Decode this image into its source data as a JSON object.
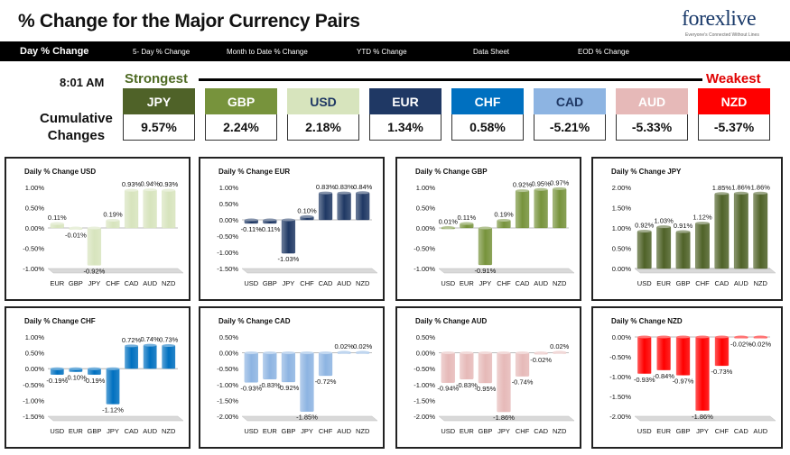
{
  "header": {
    "title": "% Change for the Major Currency Pairs",
    "logo": "forexlive",
    "logo_sub": "Everyone's Connected Without Lines"
  },
  "nav": {
    "items": [
      "Day % Change",
      "5- Day % Change",
      "Month to Date % Change",
      "YTD % Change",
      "Data Sheet",
      "EOD % Change"
    ]
  },
  "summary": {
    "time": "8:01 AM",
    "strongest_label": "Strongest",
    "weakest_label": "Weakest",
    "cumulative_label_1": "Cumulative",
    "cumulative_label_2": "Changes",
    "currencies": [
      {
        "name": "JPY",
        "value": "9.57%",
        "color": "#4f6228",
        "text": "#ffffff"
      },
      {
        "name": "GBP",
        "value": "2.24%",
        "color": "#77933c",
        "text": "#ffffff"
      },
      {
        "name": "USD",
        "value": "2.18%",
        "color": "#d7e4bd",
        "text": "#1f3864"
      },
      {
        "name": "EUR",
        "value": "1.34%",
        "color": "#1f3864",
        "text": "#ffffff"
      },
      {
        "name": "CHF",
        "value": "0.58%",
        "color": "#0070c0",
        "text": "#ffffff"
      },
      {
        "name": "CAD",
        "value": "-5.21%",
        "color": "#8db4e2",
        "text": "#1f3864"
      },
      {
        "name": "AUD",
        "value": "-5.33%",
        "color": "#e6b9b8",
        "text": "#ffffff"
      },
      {
        "name": "NZD",
        "value": "-5.37%",
        "color": "#ff0000",
        "text": "#ffffff"
      }
    ]
  },
  "chart_data": [
    {
      "type": "bar",
      "title": "Daily % Change USD",
      "categories": [
        "EUR",
        "GBP",
        "JPY",
        "CHF",
        "CAD",
        "AUD",
        "NZD"
      ],
      "values": [
        0.11,
        -0.01,
        -0.92,
        0.19,
        0.93,
        0.94,
        0.93
      ],
      "labels": [
        "0.11%",
        "-0.01%",
        "-0.92%",
        "0.19%",
        "0.93%",
        "0.94%",
        "0.93%"
      ],
      "ylim": [
        -1.0,
        1.0
      ],
      "ticks": [
        "1.00%",
        "0.50%",
        "0.00%",
        "-0.50%",
        "-1.00%"
      ],
      "color": "#d7e4bd"
    },
    {
      "type": "bar",
      "title": "Daily % Change EUR",
      "categories": [
        "USD",
        "GBP",
        "JPY",
        "CHF",
        "CAD",
        "AUD",
        "NZD"
      ],
      "values": [
        -0.11,
        -0.11,
        -1.03,
        0.1,
        0.83,
        0.83,
        0.84
      ],
      "labels": [
        "-0.11%",
        "-0.11%",
        "-1.03%",
        "0.10%",
        "0.83%",
        "0.83%",
        "0.84%"
      ],
      "ylim": [
        -1.5,
        1.0
      ],
      "ticks": [
        "1.00%",
        "0.50%",
        "0.00%",
        "-0.50%",
        "-1.00%",
        "-1.50%"
      ],
      "color": "#1f3864"
    },
    {
      "type": "bar",
      "title": "Daily % Change GBP",
      "categories": [
        "USD",
        "EUR",
        "JPY",
        "CHF",
        "CAD",
        "AUD",
        "NZD"
      ],
      "values": [
        0.01,
        0.11,
        -0.91,
        0.19,
        0.92,
        0.95,
        0.97
      ],
      "labels": [
        "0.01%",
        "0.11%",
        "-0.91%",
        "0.19%",
        "0.92%",
        "0.95%",
        "0.97%"
      ],
      "ylim": [
        -1.0,
        1.0
      ],
      "ticks": [
        "1.00%",
        "0.50%",
        "0.00%",
        "-0.50%",
        "-1.00%"
      ],
      "color": "#77933c"
    },
    {
      "type": "bar",
      "title": "Daily % Change JPY",
      "categories": [
        "USD",
        "EUR",
        "GBP",
        "CHF",
        "CAD",
        "AUD",
        "NZD"
      ],
      "values": [
        0.92,
        1.03,
        0.91,
        1.12,
        1.85,
        1.86,
        1.86
      ],
      "labels": [
        "0.92%",
        "1.03%",
        "0.91%",
        "1.12%",
        "1.85%",
        "1.86%",
        "1.86%"
      ],
      "ylim": [
        0.0,
        2.0
      ],
      "ticks": [
        "2.00%",
        "1.50%",
        "1.00%",
        "0.50%",
        "0.00%"
      ],
      "color": "#4f6228"
    },
    {
      "type": "bar",
      "title": "Daily % Change CHF",
      "categories": [
        "USD",
        "EUR",
        "GBP",
        "JPY",
        "CAD",
        "AUD",
        "NZD"
      ],
      "values": [
        -0.19,
        -0.1,
        -0.19,
        -1.12,
        0.72,
        0.74,
        0.73
      ],
      "labels": [
        "-0.19%",
        "-0.10%",
        "-0.19%",
        "-1.12%",
        "0.72%",
        "0.74%",
        "0.73%"
      ],
      "ylim": [
        -1.5,
        1.0
      ],
      "ticks": [
        "1.00%",
        "0.50%",
        "0.00%",
        "-0.50%",
        "-1.00%",
        "-1.50%"
      ],
      "color": "#0070c0"
    },
    {
      "type": "bar",
      "title": "Daily % Change CAD",
      "categories": [
        "USD",
        "EUR",
        "GBP",
        "JPY",
        "CHF",
        "AUD",
        "NZD"
      ],
      "values": [
        -0.93,
        -0.83,
        -0.92,
        -1.85,
        -0.72,
        0.02,
        0.02
      ],
      "labels": [
        "-0.93%",
        "-0.83%",
        "-0.92%",
        "-1.85%",
        "-0.72%",
        "0.02%",
        "0.02%"
      ],
      "ylim": [
        -2.0,
        0.5
      ],
      "ticks": [
        "0.50%",
        "0.00%",
        "-0.50%",
        "-1.00%",
        "-1.50%",
        "-2.00%"
      ],
      "color": "#8db4e2"
    },
    {
      "type": "bar",
      "title": "Daily % Change AUD",
      "categories": [
        "USD",
        "EUR",
        "GBP",
        "JPY",
        "CHF",
        "CAD",
        "NZD"
      ],
      "values": [
        -0.94,
        -0.83,
        -0.95,
        -1.86,
        -0.74,
        -0.02,
        0.02
      ],
      "labels": [
        "-0.94%",
        "-0.83%",
        "-0.95%",
        "-1.86%",
        "-0.74%",
        "-0.02%",
        "0.02%"
      ],
      "ylim": [
        -2.0,
        0.5
      ],
      "ticks": [
        "0.50%",
        "0.00%",
        "-0.50%",
        "-1.00%",
        "-1.50%",
        "-2.00%"
      ],
      "color": "#e6b9b8"
    },
    {
      "type": "bar",
      "title": "Daily % Change NZD",
      "categories": [
        "USD",
        "EUR",
        "GBP",
        "JPY",
        "CHF",
        "CAD",
        "AUD"
      ],
      "values": [
        -0.93,
        -0.84,
        -0.97,
        -1.86,
        -0.73,
        -0.02,
        -0.02
      ],
      "labels": [
        "-0.93%",
        "-0.84%",
        "-0.97%",
        "-1.86%",
        "-0.73%",
        "-0.02%",
        "-0.02%"
      ],
      "ylim": [
        -2.0,
        0.0
      ],
      "ticks": [
        "0.00%",
        "-0.50%",
        "-1.00%",
        "-1.50%",
        "-2.00%"
      ],
      "color": "#ff0000"
    }
  ]
}
